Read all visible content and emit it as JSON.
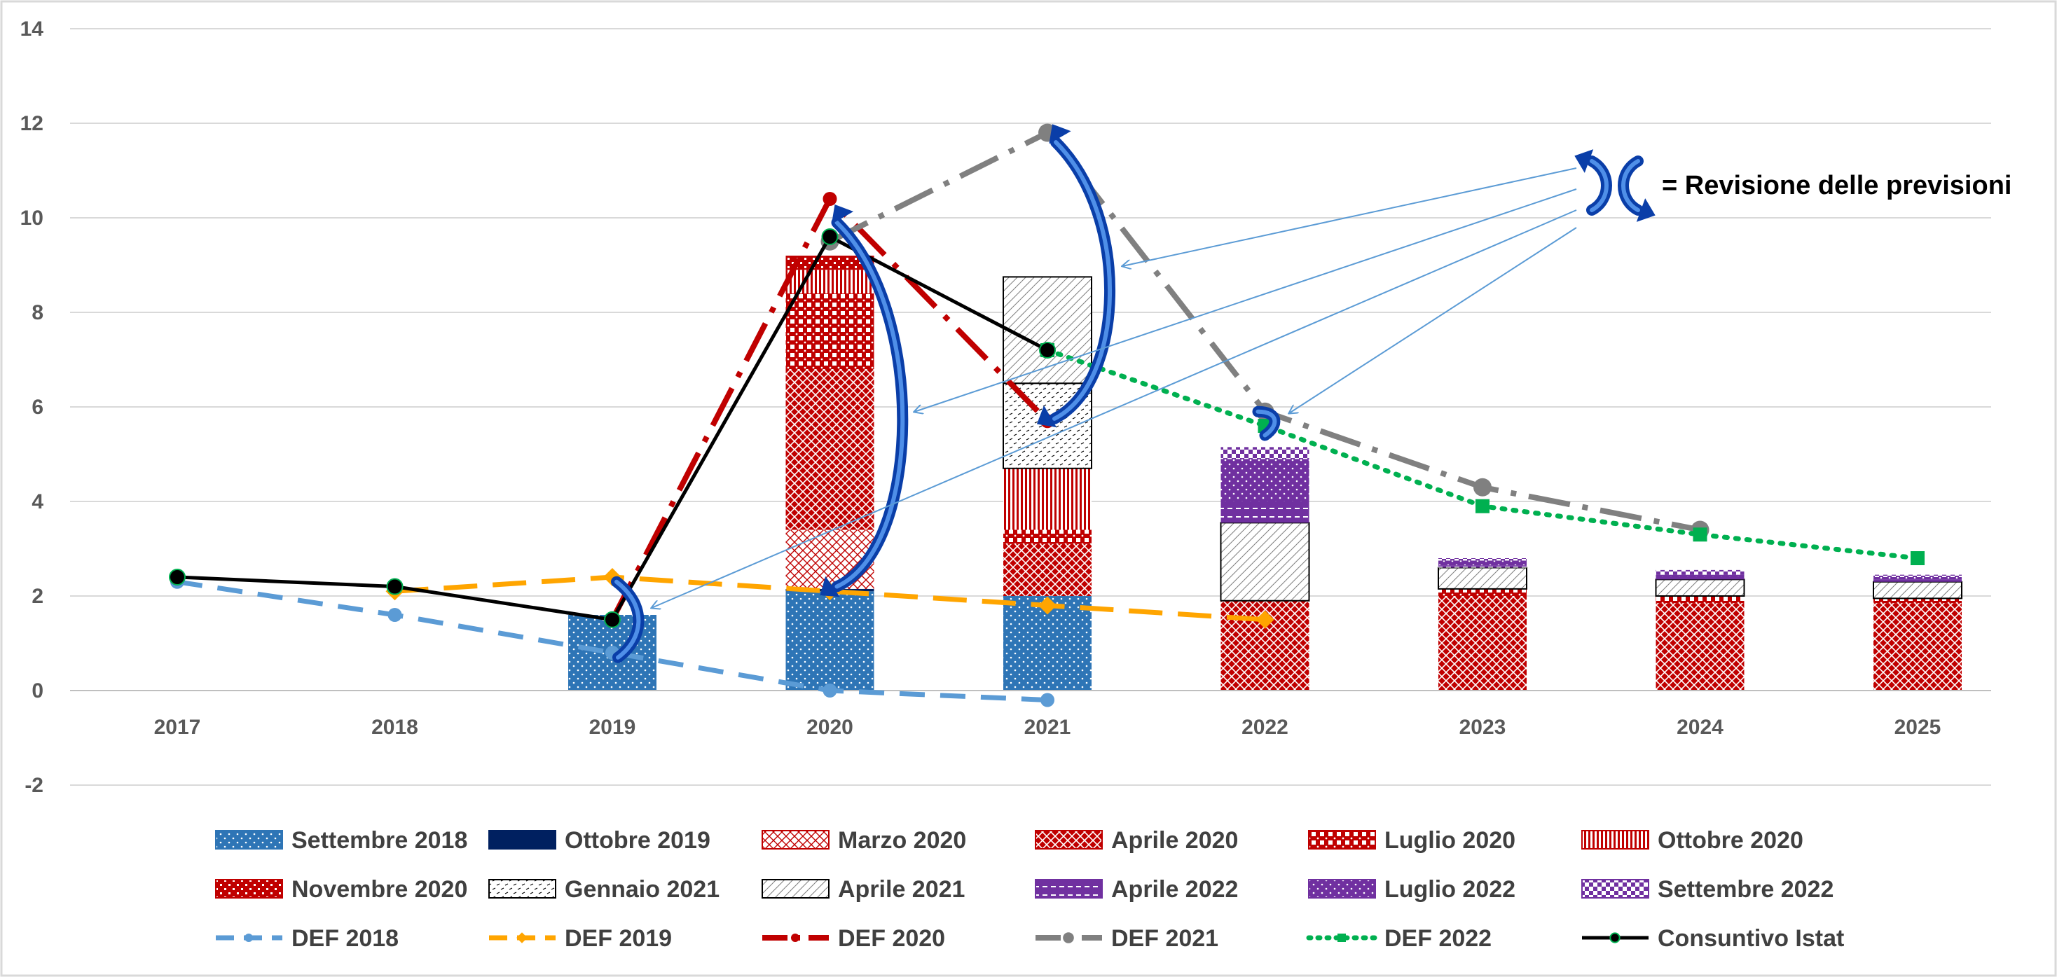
{
  "chart_data": {
    "type": "bar",
    "title": "",
    "xlabel": "",
    "ylabel": "",
    "ylim": [
      -2,
      14
    ],
    "yticks": [
      "-2",
      "0",
      "2",
      "4",
      "6",
      "8",
      "10",
      "12",
      "14"
    ],
    "grid": true,
    "legend_position": "bottom",
    "categories": [
      "2017",
      "2018",
      "2019",
      "2020",
      "2021",
      "2022",
      "2023",
      "2024",
      "2025"
    ],
    "bar_series": [
      {
        "name": "Settembre  2018",
        "color": "#2e75b6",
        "pattern": "dots-white",
        "values": [
          0,
          0,
          1.6,
          2.1,
          2.0,
          0,
          0,
          0,
          0
        ]
      },
      {
        "name": "Ottobre 2019",
        "color": "#002060",
        "pattern": "solid",
        "values": [
          0,
          0,
          0,
          0.05,
          0,
          0,
          0,
          0,
          0
        ]
      },
      {
        "name": "Marzo 2020",
        "color": "#c00000",
        "pattern": "fine-cross",
        "values": [
          0,
          0,
          0,
          1.25,
          0,
          0,
          0,
          0,
          0
        ]
      },
      {
        "name": "Aprile 2020",
        "color": "#c00000",
        "pattern": "crosshatch",
        "values": [
          0,
          0,
          0,
          3.4,
          1.1,
          1.9,
          2.0,
          1.85,
          1.85
        ]
      },
      {
        "name": "Luglio 2020",
        "color": "#c00000",
        "pattern": "checker",
        "values": [
          0,
          0,
          0,
          1.6,
          0.3,
          0,
          0.15,
          0.15,
          0.1
        ]
      },
      {
        "name": "Ottobre 2020",
        "color": "#c00000",
        "pattern": "vertical",
        "values": [
          0,
          0,
          0,
          0.5,
          1.3,
          0,
          0,
          0,
          0
        ]
      },
      {
        "name": "Novembre 2020",
        "color": "#c00000",
        "pattern": "dotted-grid",
        "values": [
          0,
          0,
          0,
          0.3,
          0,
          0,
          0,
          0,
          0
        ]
      },
      {
        "name": "Gennaio 2021",
        "color": "#000000",
        "pattern": "sparse-dash",
        "values": [
          0,
          0,
          0,
          0,
          1.8,
          0,
          0,
          0,
          0
        ]
      },
      {
        "name": "Aprile 2021",
        "color": "#000000",
        "pattern": "diagonal",
        "values": [
          0,
          0,
          0,
          0,
          2.25,
          1.65,
          0.45,
          0.35,
          0.35
        ]
      },
      {
        "name": "Aprile 2022",
        "color": "#7030a0",
        "pattern": "hdash",
        "values": [
          0,
          0,
          0,
          0,
          0,
          0.45,
          0.05,
          0.05,
          0.05
        ]
      },
      {
        "name": "Luglio 2022",
        "color": "#7030a0",
        "pattern": "dots-white",
        "values": [
          0,
          0,
          0,
          0,
          0,
          0.9,
          0.1,
          0.05,
          0.05
        ]
      },
      {
        "name": "Settembre 2022",
        "color": "#7030a0",
        "pattern": "checker-fine",
        "values": [
          0,
          0,
          0,
          0,
          0,
          0.25,
          0.05,
          0.1,
          0.05
        ]
      }
    ],
    "line_series": [
      {
        "name": "DEF 2018",
        "color": "#5b9bd5",
        "dash": "36,22",
        "width": 7,
        "marker": "circle",
        "points": [
          [
            2017,
            2.3
          ],
          [
            2018,
            1.6
          ],
          [
            2019,
            0.8
          ],
          [
            2020,
            0.0
          ],
          [
            2021,
            -0.2
          ]
        ]
      },
      {
        "name": "DEF 2019",
        "color": "#ffa500",
        "dash": "48,22",
        "width": 7,
        "marker": "diamond",
        "points": [
          [
            2018,
            2.1
          ],
          [
            2019,
            2.4
          ],
          [
            2020,
            2.1
          ],
          [
            2021,
            1.8
          ],
          [
            2022,
            1.5
          ]
        ]
      },
      {
        "name": "DEF 2020",
        "color": "#c00000",
        "dash": "60,18,8,18",
        "width": 8,
        "marker": "circle",
        "points": [
          [
            2019,
            1.5
          ],
          [
            2020,
            10.4
          ],
          [
            2021,
            5.7
          ]
        ]
      },
      {
        "name": "DEF 2021",
        "color": "#808080",
        "dash": "60,18,8,18",
        "width": 8,
        "marker": "circle-large",
        "points": [
          [
            2020,
            9.5
          ],
          [
            2021,
            11.8
          ],
          [
            2022,
            5.9
          ],
          [
            2023,
            4.3
          ],
          [
            2024,
            3.4
          ]
        ]
      },
      {
        "name": "DEF 2022",
        "color": "#00b050",
        "dash": "4,12",
        "width": 7,
        "marker": "square",
        "points": [
          [
            2021,
            7.2
          ],
          [
            2022,
            5.6
          ],
          [
            2023,
            3.9
          ],
          [
            2024,
            3.3
          ],
          [
            2025,
            2.8
          ]
        ]
      },
      {
        "name": "Consuntivo Istat",
        "color": "#000000",
        "dash": "",
        "width": 5,
        "marker": "circle-black",
        "points": [
          [
            2017,
            2.4
          ],
          [
            2018,
            2.2
          ],
          [
            2019,
            1.5
          ],
          [
            2020,
            9.6
          ],
          [
            2021,
            7.2
          ]
        ]
      }
    ],
    "annotation": "= Revisione delle previsioni",
    "legend": [
      "Settembre  2018",
      "Ottobre 2019",
      "Marzo 2020",
      "Aprile 2020",
      "Luglio 2020",
      "Ottobre 2020",
      "Novembre 2020",
      "Gennaio 2021",
      "Aprile 2021",
      "Aprile 2022",
      "Luglio 2022",
      "Settembre 2022",
      "DEF 2018",
      "DEF 2019",
      "DEF 2020",
      "DEF 2021",
      "DEF 2022",
      "Consuntivo Istat"
    ]
  }
}
